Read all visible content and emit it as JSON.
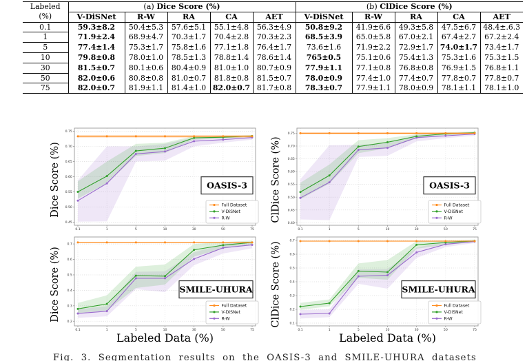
{
  "table": {
    "corner": [
      "Labeled",
      "(%)"
    ],
    "section_a_prefix": "(a)",
    "section_a_title": "Dice Score (%)",
    "section_b_prefix": "(b)",
    "section_b_title": "ClDice Score (%)",
    "sub_headers": [
      "V-DiSNet",
      "R-W",
      "RA",
      "CA",
      "AET"
    ],
    "rows": [
      {
        "label": "0.1",
        "dice": [
          "59.3±8.2",
          "50.4±5.3",
          "57.6±5.1",
          "55.1±4.8",
          "56.3±4.9"
        ],
        "dice_bold": [
          0
        ],
        "cldice": [
          "50.8±9.2",
          "41.9±6.6",
          "49.3±5.8",
          "47.5±6.7",
          "48.4±.6.3"
        ],
        "cldice_bold": [
          0
        ]
      },
      {
        "label": "1",
        "dice": [
          "71.9±2.4",
          "68.9±4.7",
          "70.3±1.7",
          "70.4±2.8",
          "70.3±2.3"
        ],
        "dice_bold": [
          0
        ],
        "cldice": [
          "68.5±3.9",
          "65.0±5.8",
          "67.0±2.1",
          "67.4±2.7",
          "67.2±2.4"
        ],
        "cldice_bold": [
          0
        ]
      },
      {
        "label": "5",
        "dice": [
          "77.4±1.4",
          "75.3±1.7",
          "75.8±1.6",
          "77.1±1.8",
          "76.4±1.7"
        ],
        "dice_bold": [
          0
        ],
        "cldice": [
          "73.6±1.6",
          "71.9±2.2",
          "72.9±1.7",
          "74.0±1.7",
          "73.4±1.7"
        ],
        "cldice_bold": [
          3
        ]
      },
      {
        "label": "10",
        "dice": [
          "79.8±0.8",
          "78.0±1.0",
          "78.5±1.3",
          "78.8±1.4",
          "78.6±1.4"
        ],
        "dice_bold": [
          0
        ],
        "cldice": [
          "765±0.5",
          "75.1±0.6",
          "75.4±1.3",
          "75.3±1.6",
          "75.3±1.5"
        ],
        "cldice_bold": [
          0
        ]
      },
      {
        "label": "30",
        "dice": [
          "81.5±0.7",
          "80.1±0.6",
          "80.4±0.9",
          "81.0±1.0",
          "80.7±0.9"
        ],
        "dice_bold": [
          0
        ],
        "cldice": [
          "77.9±1.1",
          "77.1±0.8",
          "76.8±0.8",
          "76.9±1.5",
          "76.8±1.1"
        ],
        "cldice_bold": [
          0
        ]
      },
      {
        "label": "50",
        "dice": [
          "82.0±0.6",
          "80.8±0.8",
          "81.0±0.7",
          "81.8±0.8",
          "81.5±0.7"
        ],
        "dice_bold": [
          0
        ],
        "cldice": [
          "78.0±0.9",
          "77.4±1.0",
          "77.4±0.7",
          "77.8±0.7",
          "77.8±0.7"
        ],
        "cldice_bold": [
          0
        ]
      },
      {
        "label": "75",
        "dice": [
          "82.0±0.7",
          "81.9±1.1",
          "81.4±1.0",
          "82.0±0.7",
          "81.7±0.8"
        ],
        "dice_bold": [
          0,
          3
        ],
        "cldice": [
          "78.3±0.7",
          "77.9±1.1",
          "78.0±0.9",
          "78.1±1.1",
          "78.1±1.0"
        ],
        "cldice_bold": [
          0
        ]
      }
    ]
  },
  "figure": {
    "colors": {
      "full": "#ff8c1e",
      "vdisnet": "#33a02c",
      "rw": "#9a6bcd"
    },
    "ylabel_dice": "Dice Score (%)",
    "ylabel_cldice": "ClDice Score (%)",
    "xlabel": "Labeled Data (%)"
  },
  "chart_data": [
    {
      "id": "oasis3-dice",
      "type": "line",
      "title_box": "OASIS-3",
      "ylabel": "Dice Score (%)",
      "xlabel": "",
      "x": [
        0.1,
        1,
        5,
        10,
        30,
        50,
        75
      ],
      "xticklabels": [
        "0.1",
        "1",
        "5",
        "10",
        "30",
        "50",
        "75"
      ],
      "yticks": [
        0.45,
        0.5,
        0.55,
        0.6,
        0.65,
        0.7,
        0.75
      ],
      "ylim": [
        0.44,
        0.76
      ],
      "dec": 2,
      "grid": true,
      "legend": [
        "Full Dataset",
        "V-DiSNet",
        "R-W"
      ],
      "legend_position": "lower right",
      "series": [
        {
          "name": "Full Dataset",
          "color_key": "full",
          "values": [
            0.733,
            0.733,
            0.733,
            0.733,
            0.733,
            0.733,
            0.733
          ],
          "band_lo": [
            0.729,
            0.729,
            0.729,
            0.729,
            0.729,
            0.729,
            0.729
          ],
          "band_hi": [
            0.737,
            0.737,
            0.737,
            0.737,
            0.737,
            0.737,
            0.737
          ]
        },
        {
          "name": "V-DiSNet",
          "color_key": "vdisnet",
          "values": [
            0.55,
            0.602,
            0.685,
            0.694,
            0.728,
            0.73,
            0.734
          ],
          "band_lo": [
            0.528,
            0.578,
            0.668,
            0.678,
            0.722,
            0.726,
            0.731
          ],
          "band_hi": [
            0.585,
            0.65,
            0.708,
            0.712,
            0.734,
            0.734,
            0.737
          ]
        },
        {
          "name": "R-W",
          "color_key": "rw",
          "values": [
            0.521,
            0.578,
            0.675,
            0.683,
            0.717,
            0.722,
            0.729
          ],
          "band_lo": [
            0.452,
            0.453,
            0.65,
            0.653,
            0.7,
            0.712,
            0.722
          ],
          "band_hi": [
            0.588,
            0.7,
            0.7,
            0.708,
            0.729,
            0.73,
            0.734
          ]
        }
      ]
    },
    {
      "id": "oasis3-cldice",
      "type": "line",
      "title_box": "OASIS-3",
      "ylabel": "ClDice Score (%)",
      "xlabel": "",
      "x": [
        0.1,
        1,
        5,
        10,
        30,
        50,
        75
      ],
      "xticklabels": [
        "0.1",
        "1",
        "5",
        "10",
        "30",
        "50",
        "75"
      ],
      "yticks": [
        0.4,
        0.45,
        0.5,
        0.55,
        0.6,
        0.65,
        0.7,
        0.75
      ],
      "ylim": [
        0.39,
        0.77
      ],
      "dec": 2,
      "grid": true,
      "legend": [
        "Full Dataset",
        "V-DiSNet",
        "R-W"
      ],
      "legend_position": "lower right",
      "series": [
        {
          "name": "Full Dataset",
          "color_key": "full",
          "values": [
            0.75,
            0.75,
            0.75,
            0.75,
            0.75,
            0.75,
            0.75
          ],
          "band_lo": [
            0.746,
            0.746,
            0.746,
            0.746,
            0.746,
            0.746,
            0.746
          ],
          "band_hi": [
            0.754,
            0.754,
            0.754,
            0.754,
            0.754,
            0.754,
            0.754
          ]
        },
        {
          "name": "V-DiSNet",
          "color_key": "vdisnet",
          "values": [
            0.52,
            0.585,
            0.698,
            0.715,
            0.738,
            0.748,
            0.752
          ],
          "band_lo": [
            0.492,
            0.553,
            0.672,
            0.692,
            0.73,
            0.743,
            0.748
          ],
          "band_hi": [
            0.556,
            0.628,
            0.723,
            0.731,
            0.746,
            0.753,
            0.757
          ]
        },
        {
          "name": "R-W",
          "color_key": "rw",
          "values": [
            0.497,
            0.558,
            0.685,
            0.693,
            0.733,
            0.74,
            0.747
          ],
          "band_lo": [
            0.413,
            0.41,
            0.657,
            0.662,
            0.718,
            0.731,
            0.74
          ],
          "band_hi": [
            0.57,
            0.703,
            0.705,
            0.712,
            0.744,
            0.748,
            0.753
          ]
        }
      ]
    },
    {
      "id": "smile-dice",
      "type": "line",
      "title_box": "SMILE-UHURA",
      "ylabel": "Dice Score (%)",
      "xlabel": "Labeled Data (%)",
      "x": [
        0.1,
        1,
        5,
        10,
        30,
        50,
        75
      ],
      "xticklabels": [
        "0.1",
        "1",
        "5",
        "10",
        "30",
        "50",
        "75"
      ],
      "yticks": [
        0.2,
        0.3,
        0.4,
        0.5,
        0.6,
        0.7
      ],
      "ylim": [
        0.17,
        0.745
      ],
      "dec": 1,
      "grid": true,
      "legend": [
        "Full Dataset",
        "V-DiSNet",
        "R-W"
      ],
      "legend_position": "lower right",
      "series": [
        {
          "name": "Full Dataset",
          "color_key": "full",
          "values": [
            0.71,
            0.71,
            0.71,
            0.71,
            0.71,
            0.71,
            0.71
          ],
          "band_lo": [
            0.706,
            0.706,
            0.706,
            0.706,
            0.706,
            0.706,
            0.706
          ],
          "band_hi": [
            0.714,
            0.714,
            0.714,
            0.714,
            0.714,
            0.714,
            0.714
          ]
        },
        {
          "name": "V-DiSNet",
          "color_key": "vdisnet",
          "values": [
            0.28,
            0.312,
            0.495,
            0.492,
            0.662,
            0.692,
            0.71
          ],
          "band_lo": [
            0.252,
            0.27,
            0.415,
            0.437,
            0.618,
            0.67,
            0.698
          ],
          "band_hi": [
            0.318,
            0.368,
            0.553,
            0.567,
            0.7,
            0.712,
            0.722
          ]
        },
        {
          "name": "R-W",
          "color_key": "rw",
          "values": [
            0.25,
            0.265,
            0.478,
            0.478,
            0.603,
            0.675,
            0.694
          ],
          "band_lo": [
            0.222,
            0.232,
            0.408,
            0.388,
            0.562,
            0.638,
            0.672
          ],
          "band_hi": [
            0.278,
            0.297,
            0.52,
            0.523,
            0.645,
            0.7,
            0.714
          ]
        }
      ]
    },
    {
      "id": "smile-cldice",
      "type": "line",
      "title_box": "SMILE-UHURA",
      "ylabel": "ClDice Score (%)",
      "xlabel": "Labeled Data (%)",
      "x": [
        0.1,
        1,
        5,
        10,
        30,
        50,
        75
      ],
      "xticklabels": [
        "0.1",
        "1",
        "5",
        "10",
        "30",
        "50",
        "75"
      ],
      "yticks": [
        0.1,
        0.2,
        0.3,
        0.4,
        0.5,
        0.6,
        0.7
      ],
      "ylim": [
        0.08,
        0.725
      ],
      "dec": 1,
      "grid": true,
      "legend": [
        "Full Dataset",
        "V-DiSNet",
        "R-W"
      ],
      "legend_position": "lower right",
      "series": [
        {
          "name": "Full Dataset",
          "color_key": "full",
          "values": [
            0.695,
            0.695,
            0.695,
            0.695,
            0.695,
            0.695,
            0.695
          ],
          "band_lo": [
            0.691,
            0.691,
            0.691,
            0.691,
            0.691,
            0.691,
            0.691
          ],
          "band_hi": [
            0.699,
            0.699,
            0.699,
            0.699,
            0.699,
            0.699,
            0.699
          ]
        },
        {
          "name": "V-DiSNet",
          "color_key": "vdisnet",
          "values": [
            0.22,
            0.245,
            0.478,
            0.47,
            0.668,
            0.685,
            0.696
          ],
          "band_lo": [
            0.197,
            0.222,
            0.428,
            0.415,
            0.64,
            0.668,
            0.688
          ],
          "band_hi": [
            0.247,
            0.272,
            0.533,
            0.558,
            0.695,
            0.7,
            0.706
          ]
        },
        {
          "name": "R-W",
          "color_key": "rw",
          "values": [
            0.165,
            0.17,
            0.44,
            0.447,
            0.613,
            0.672,
            0.692
          ],
          "band_lo": [
            0.133,
            0.143,
            0.385,
            0.35,
            0.573,
            0.652,
            0.681
          ],
          "band_hi": [
            0.195,
            0.2,
            0.49,
            0.492,
            0.648,
            0.69,
            0.702
          ]
        }
      ]
    }
  ],
  "caption": "Fig. 3. Segmentation results on the OASIS-3 and SMILE-UHURA datasets"
}
